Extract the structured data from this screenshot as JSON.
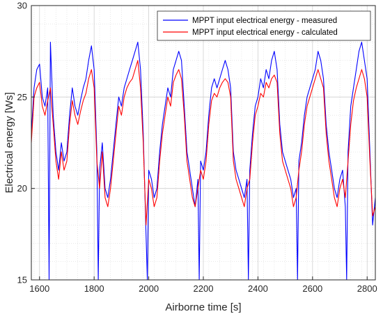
{
  "chart_data": {
    "type": "line",
    "title": "",
    "xlabel": "Airborne time [s]",
    "ylabel": "Electrical energy [Ws]",
    "xlim": [
      1570,
      2830
    ],
    "ylim": [
      15,
      30
    ],
    "xticks": [
      1600,
      1800,
      2000,
      2200,
      2400,
      2600,
      2800
    ],
    "yticks": [
      15,
      20,
      25,
      30
    ],
    "grid": true,
    "minor_grid": true,
    "legend_position": "top-right",
    "series": [
      {
        "name": "MPPT input electrical energy - measured",
        "color": "#0000ff",
        "x": [
          1570,
          1580,
          1590,
          1600,
          1610,
          1620,
          1630,
          1635,
          1640,
          1650,
          1660,
          1670,
          1680,
          1690,
          1700,
          1710,
          1720,
          1730,
          1740,
          1750,
          1760,
          1770,
          1780,
          1790,
          1800,
          1810,
          1815,
          1820,
          1830,
          1840,
          1850,
          1860,
          1870,
          1880,
          1890,
          1900,
          1910,
          1920,
          1930,
          1940,
          1950,
          1960,
          1970,
          1980,
          1990,
          1995,
          2000,
          2010,
          2020,
          2030,
          2040,
          2050,
          2060,
          2070,
          2080,
          2090,
          2100,
          2110,
          2120,
          2130,
          2140,
          2150,
          2160,
          2170,
          2180,
          2185,
          2190,
          2200,
          2210,
          2220,
          2230,
          2240,
          2250,
          2260,
          2270,
          2280,
          2290,
          2300,
          2310,
          2320,
          2330,
          2340,
          2350,
          2360,
          2365,
          2370,
          2380,
          2390,
          2400,
          2410,
          2420,
          2430,
          2440,
          2450,
          2460,
          2470,
          2480,
          2490,
          2500,
          2510,
          2520,
          2530,
          2540,
          2545,
          2550,
          2560,
          2570,
          2580,
          2590,
          2600,
          2610,
          2620,
          2630,
          2640,
          2650,
          2660,
          2670,
          2680,
          2690,
          2700,
          2710,
          2720,
          2725,
          2730,
          2740,
          2750,
          2760,
          2770,
          2780,
          2790,
          2800,
          2810,
          2820,
          2830
        ],
        "y": [
          23.0,
          25.5,
          26.5,
          26.8,
          25.0,
          24.5,
          25.5,
          15.0,
          28.0,
          24.0,
          22.0,
          21.0,
          22.5,
          21.5,
          22.0,
          24.0,
          25.5,
          24.5,
          24.0,
          24.8,
          25.5,
          26.0,
          27.0,
          27.8,
          26.5,
          22.0,
          15.0,
          21.0,
          22.5,
          20.0,
          19.5,
          20.5,
          22.0,
          23.5,
          25.0,
          24.5,
          25.5,
          26.0,
          26.5,
          27.0,
          27.5,
          28.0,
          26.5,
          23.0,
          17.5,
          15.0,
          21.0,
          20.5,
          19.5,
          20.0,
          22.0,
          23.5,
          24.5,
          25.5,
          25.0,
          26.5,
          27.0,
          27.5,
          27.0,
          24.5,
          22.0,
          21.0,
          20.0,
          19.0,
          20.5,
          15.0,
          21.5,
          21.0,
          22.0,
          24.0,
          25.5,
          26.0,
          25.5,
          26.0,
          26.5,
          27.0,
          26.5,
          25.5,
          22.0,
          21.0,
          20.5,
          20.0,
          19.5,
          20.5,
          15.0,
          21.0,
          23.0,
          24.5,
          25.0,
          26.0,
          25.5,
          26.5,
          26.0,
          27.0,
          27.5,
          26.5,
          23.5,
          22.0,
          21.5,
          21.0,
          20.5,
          19.5,
          20.0,
          15.0,
          21.5,
          22.5,
          24.0,
          25.0,
          25.5,
          26.0,
          26.5,
          27.5,
          27.0,
          26.0,
          23.5,
          22.0,
          21.0,
          20.0,
          19.5,
          20.5,
          21.0,
          19.0,
          15.0,
          22.0,
          24.5,
          25.5,
          26.5,
          27.5,
          28.0,
          27.0,
          26.0,
          22.0,
          18.0,
          19.5
        ]
      },
      {
        "name": "MPPT input electrical energy - calculated",
        "color": "#ff0000",
        "x": [
          1570,
          1580,
          1590,
          1600,
          1610,
          1620,
          1630,
          1640,
          1650,
          1660,
          1670,
          1680,
          1690,
          1700,
          1710,
          1720,
          1730,
          1740,
          1750,
          1760,
          1770,
          1780,
          1790,
          1800,
          1810,
          1820,
          1830,
          1840,
          1850,
          1860,
          1870,
          1880,
          1890,
          1900,
          1910,
          1920,
          1930,
          1940,
          1950,
          1960,
          1970,
          1980,
          1990,
          2000,
          2010,
          2020,
          2030,
          2040,
          2050,
          2060,
          2070,
          2080,
          2090,
          2100,
          2110,
          2120,
          2130,
          2140,
          2150,
          2160,
          2170,
          2180,
          2190,
          2200,
          2210,
          2220,
          2230,
          2240,
          2250,
          2260,
          2270,
          2280,
          2290,
          2300,
          2310,
          2320,
          2330,
          2340,
          2350,
          2360,
          2370,
          2380,
          2390,
          2400,
          2410,
          2420,
          2430,
          2440,
          2450,
          2460,
          2470,
          2480,
          2490,
          2500,
          2510,
          2520,
          2530,
          2540,
          2550,
          2560,
          2570,
          2580,
          2590,
          2600,
          2610,
          2620,
          2630,
          2640,
          2650,
          2660,
          2670,
          2680,
          2690,
          2700,
          2710,
          2720,
          2730,
          2740,
          2750,
          2760,
          2770,
          2780,
          2790,
          2800,
          2810,
          2820,
          2830
        ],
        "y": [
          22.5,
          25.0,
          25.5,
          25.8,
          24.5,
          24.0,
          24.8,
          25.5,
          23.5,
          21.5,
          20.5,
          22.0,
          21.0,
          21.5,
          23.5,
          24.8,
          24.0,
          23.5,
          24.2,
          24.8,
          25.2,
          26.0,
          26.5,
          25.5,
          21.5,
          20.0,
          22.0,
          19.5,
          19.0,
          20.0,
          21.5,
          23.0,
          24.5,
          24.0,
          25.0,
          25.5,
          25.8,
          26.0,
          26.5,
          27.0,
          25.5,
          22.5,
          18.0,
          20.5,
          20.0,
          19.0,
          19.5,
          21.5,
          23.0,
          24.0,
          25.0,
          24.5,
          25.8,
          26.2,
          26.5,
          26.0,
          24.0,
          21.5,
          20.5,
          19.5,
          19.0,
          20.0,
          21.0,
          20.5,
          21.5,
          23.5,
          24.8,
          25.2,
          25.0,
          25.5,
          25.8,
          26.0,
          25.8,
          25.0,
          21.5,
          20.5,
          20.0,
          19.5,
          19.0,
          20.0,
          20.5,
          22.5,
          24.0,
          24.5,
          25.2,
          25.0,
          25.8,
          25.5,
          26.0,
          26.2,
          25.8,
          23.0,
          21.5,
          21.0,
          20.5,
          20.0,
          19.0,
          19.5,
          21.0,
          22.0,
          23.5,
          24.5,
          25.0,
          25.5,
          26.0,
          26.5,
          26.0,
          25.5,
          23.0,
          21.5,
          20.5,
          19.5,
          19.0,
          20.0,
          20.5,
          19.5,
          21.5,
          23.5,
          24.8,
          25.5,
          26.0,
          26.5,
          26.0,
          25.0,
          21.5,
          18.5,
          19.0
        ]
      }
    ]
  }
}
